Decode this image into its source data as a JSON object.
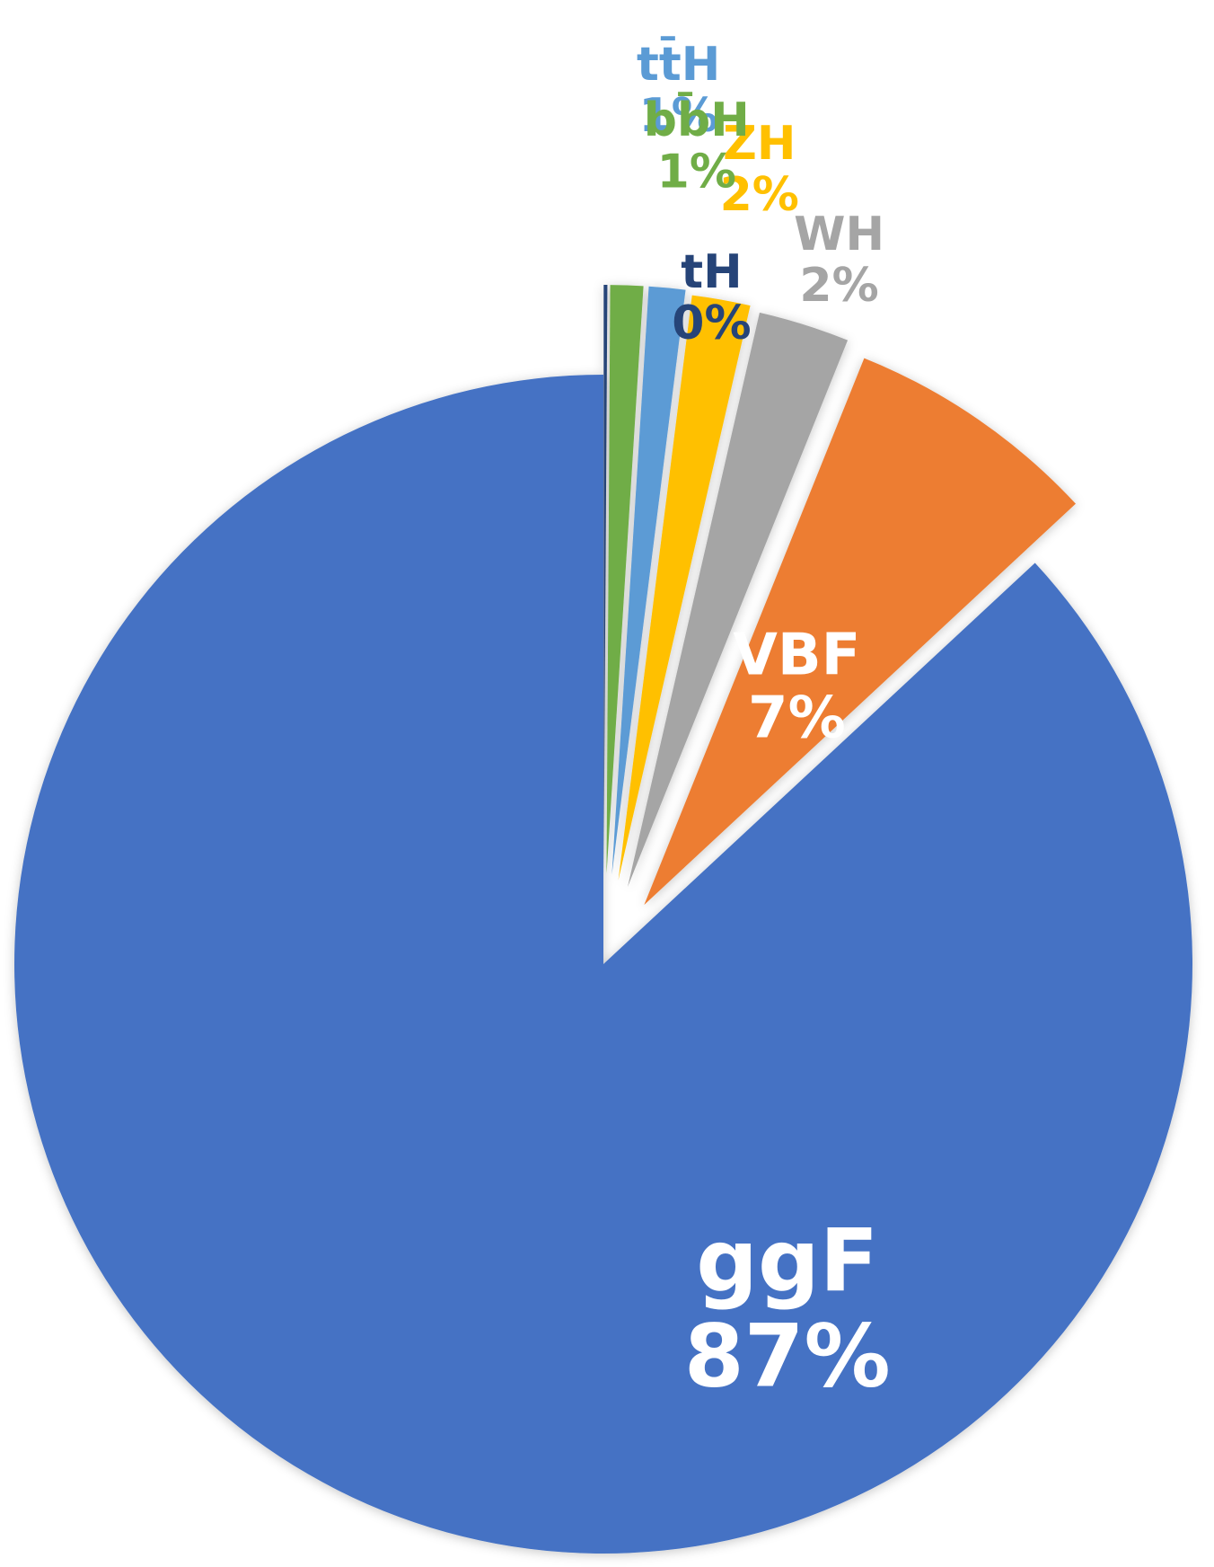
{
  "chart_data": {
    "type": "pie",
    "start_angle_deg": 0,
    "direction": "counterclockwise",
    "exploded_slices": true,
    "slices": [
      {
        "label": "ggF",
        "pct_label": "87%",
        "value": 87.0,
        "color": "#4472C4",
        "label_color": "#FFFFFF"
      },
      {
        "label": "VBF",
        "pct_label": "7%",
        "value": 7.0,
        "color": "#ED7D31",
        "label_color": "#FFFFFF"
      },
      {
        "label": "WH",
        "pct_label": "2%",
        "value": 2.5,
        "color": "#A5A5A5",
        "label_color": "#A5A5A5"
      },
      {
        "label": "ZH",
        "pct_label": "2%",
        "value": 1.6,
        "color": "#FFC000",
        "label_color": "#FFC000"
      },
      {
        "label": "tt̄H",
        "pct_label": "1%",
        "value": 1.0,
        "color": "#5B9BD5",
        "label_color": "#5B9BD5"
      },
      {
        "label": "bb̄H",
        "pct_label": "1%",
        "value": 0.9,
        "color": "#70AD47",
        "label_color": "#70AD47"
      },
      {
        "label": "tH",
        "pct_label": "0%",
        "value": 0.1,
        "color": "#264478",
        "label_color": "#264478"
      }
    ]
  }
}
